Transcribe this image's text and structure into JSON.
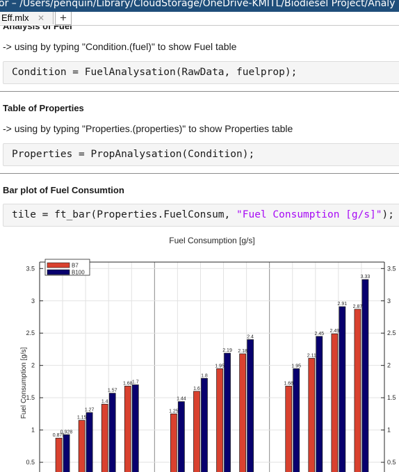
{
  "window": {
    "title": "or – /Users/penquin/Library/CloudStorage/OneDrive-KMITL/Biodiesel Project/Analy"
  },
  "tabs": [
    {
      "label": "Eff.mlx",
      "close": "✕"
    }
  ],
  "tab_add": "+",
  "sections": [
    {
      "heading": "Analysis of Fuel",
      "note": "-> using by typing \"Condition.(fuel)\" to show Fuel table",
      "code": "Condition = FuelAnalysation(RawData, fuelprop);"
    },
    {
      "heading": "Table of Properties",
      "note": "-> using by typing \"Properties.(properties)\" to show Properties table",
      "code": "Properties = PropAnalysation(Condition);"
    },
    {
      "heading": "Bar plot of Fuel Consumtion",
      "code_prefix": "tile = ft_bar(Properties.FuelConsum, ",
      "code_string": "\"Fuel Consumption [g/s]\"",
      "code_suffix": ");"
    }
  ],
  "colors": {
    "titlebar": "#1f4e7a",
    "b7": "#d9412f",
    "b100": "#08006e",
    "code_string": "#a709f5"
  },
  "chart_data": {
    "type": "bar",
    "title": "Fuel Consumption [g/s]",
    "ylabel": "Fuel Consumption [g/s]",
    "ylim": [
      0.35,
      3.6
    ],
    "yticks": [
      "0.5",
      "1",
      "1.5",
      "2",
      "2.5",
      "3",
      "3.5"
    ],
    "grid": true,
    "legend": "top-left",
    "series": [
      {
        "name": "B7",
        "color": "#d9412f",
        "values": [
          0.875,
          1.15,
          1.4,
          1.68,
          1.25,
          1.6,
          1.95,
          2.18,
          1.68,
          2.11,
          2.49,
          2.87
        ],
        "labels": [
          "0.875",
          "1.15",
          "1.4",
          "1.68",
          "1.25",
          "1.6",
          "1.95",
          "2.18",
          "1.68",
          "2.11",
          "2.49",
          "2.87"
        ]
      },
      {
        "name": "B100",
        "color": "#08006e",
        "values": [
          0.928,
          1.27,
          1.57,
          1.7,
          1.44,
          1.8,
          2.19,
          2.4,
          1.95,
          2.45,
          2.91,
          3.33
        ],
        "labels": [
          "0.928",
          "1.27",
          "1.57",
          "1.7",
          "1.44",
          "1.8",
          "2.19",
          "2.4",
          "1.95",
          "2.45",
          "2.91",
          "3.33"
        ]
      }
    ]
  }
}
